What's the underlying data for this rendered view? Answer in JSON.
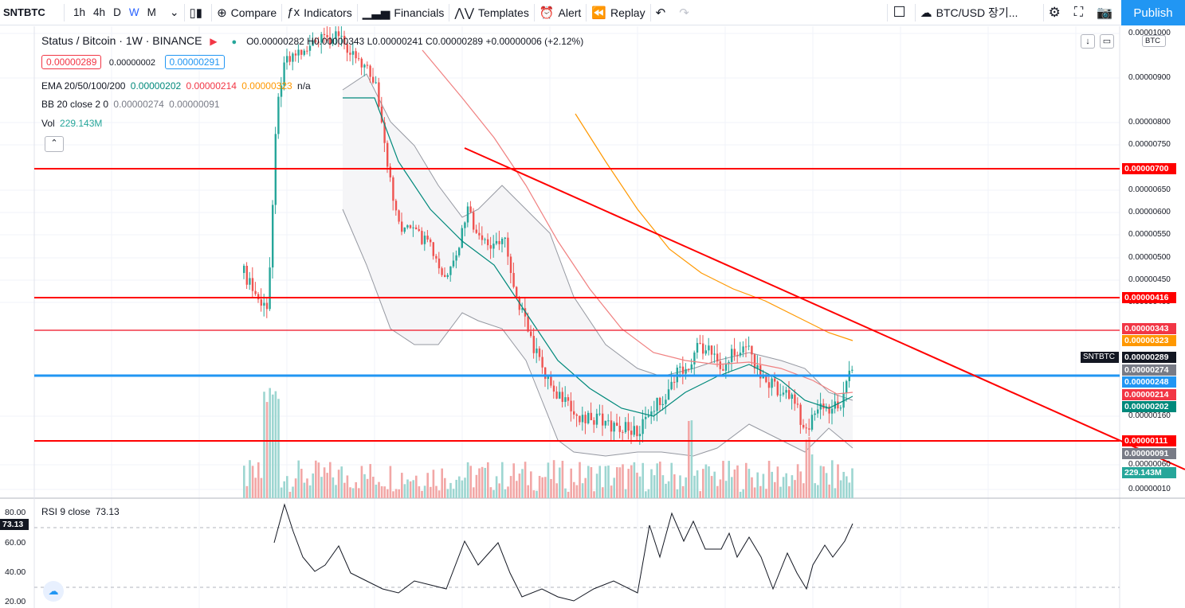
{
  "toolbar": {
    "symbol": "SNTBTC",
    "resolutions": [
      "1h",
      "4h",
      "D",
      "W",
      "M"
    ],
    "active_resolution": "W",
    "compare": "Compare",
    "indicators": "Indicators",
    "financials": "Financials",
    "templates": "Templates",
    "alert": "Alert",
    "replay": "Replay",
    "watch_symbol": "BTC/USD 장기...",
    "publish": "Publish"
  },
  "legend": {
    "title": "Status / Bitcoin · 1W · BINANCE",
    "ohlc": {
      "o": "0.00000282",
      "h": "0.00000343",
      "l": "0.00000241",
      "c": "0.00000289",
      "chg": "+0.00000006 (+2.12%)"
    },
    "o_label": "O",
    "h_label": "H",
    "l_label": "L",
    "c_label": "C",
    "bid": "0.00000289",
    "spread": "0.00000002",
    "ask": "0.00000291",
    "ema_label": "EMA 20/50/100/200",
    "ema_values": [
      "0.00000202",
      "0.00000214",
      "0.00000323",
      "n/a"
    ],
    "bb_label": "BB 20 close 2 0",
    "bb_values": [
      "0.00000274",
      "0.00000091"
    ],
    "vol_label": "Vol",
    "vol_value": "229.143M",
    "rsi_label": "RSI 9 close",
    "rsi_value": "73.13"
  },
  "axis": {
    "currency": "BTC",
    "ticks": [
      {
        "v": "0.00001000",
        "y": 42
      },
      {
        "v": "0.00000900",
        "y": 98
      },
      {
        "v": "0.00000800",
        "y": 154
      },
      {
        "v": "0.00000750",
        "y": 182
      },
      {
        "v": "0.00000650",
        "y": 239
      },
      {
        "v": "0.00000600",
        "y": 267
      },
      {
        "v": "0.00000550",
        "y": 295
      },
      {
        "v": "0.00000500",
        "y": 324
      },
      {
        "v": "0.00000450",
        "y": 352
      },
      {
        "v": "0.00000400",
        "y": 380
      },
      {
        "v": "0.00000160",
        "y": 523
      },
      {
        "v": "0.00000060",
        "y": 584
      },
      {
        "v": "0.00000010",
        "y": 615
      }
    ],
    "tags": [
      {
        "v": "0.00000700",
        "bg": "#ff0000",
        "y": 212
      },
      {
        "v": "0.00000416",
        "bg": "#ff0000",
        "y": 374
      },
      {
        "v": "0.00000343",
        "bg": "#f23645",
        "y": 413
      },
      {
        "v": "0.00000323",
        "bg": "#ff9800",
        "y": 428
      },
      {
        "v": "0.00000289",
        "bg": "#131722",
        "y": 449
      },
      {
        "v": "0.00000274",
        "bg": "#787b86",
        "y": 465
      },
      {
        "v": "0.00000248",
        "bg": "#2196f3",
        "y": 480
      },
      {
        "v": "0.00000214",
        "bg": "#f23645",
        "y": 496
      },
      {
        "v": "0.00000202",
        "bg": "#00897b",
        "y": 511
      },
      {
        "v": "0.00000111",
        "bg": "#ff0000",
        "y": 554
      },
      {
        "v": "0.00000091",
        "bg": "#787b86",
        "y": 570
      },
      {
        "v": "229.143M",
        "bg": "#26a69a",
        "y": 594
      }
    ],
    "symbol_tag": "SNTBTC",
    "rsi_ticks": [
      {
        "v": "80.00",
        "y": 644
      },
      {
        "v": "60.00",
        "y": 682
      },
      {
        "v": "40.00",
        "y": 719
      },
      {
        "v": "20.00",
        "y": 756
      }
    ]
  },
  "colors": {
    "up": "#26a69a",
    "down": "#ef5350",
    "hline": "#ff0000",
    "blueline": "#2196f3",
    "ema20": "#00897b",
    "ema50": "#f23645",
    "ema100": "#ff9800",
    "bb": "#9598a1"
  }
}
